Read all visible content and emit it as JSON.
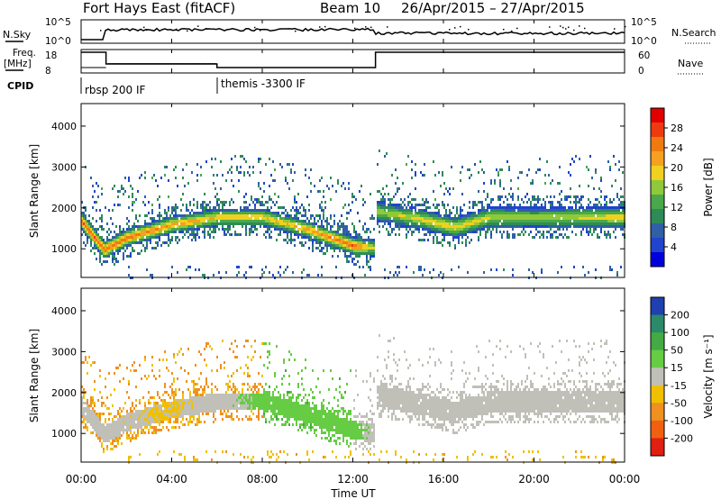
{
  "header": {
    "station": "Fort Hays East (fitACF)",
    "beam": "Beam 10",
    "dates": "26/Apr/2015 – 27/Apr/2015"
  },
  "top_panels": {
    "nsky_label": "N.Sky",
    "nsky_ticks": [
      "10^5",
      "10^0"
    ],
    "nsearch_label": "N.Search",
    "nsearch_ticks": [
      "10^5",
      "10^0"
    ],
    "freq_label": "Freq.",
    "freq_unit": "[MHz]",
    "freq_ticks": [
      "18",
      "8"
    ],
    "nave_label": "Nave",
    "nave_ticks": [
      "60",
      "0"
    ],
    "cpid_label": "CPID",
    "cpid_segments": [
      {
        "label": "rbsp 200 IF",
        "start_hour": 0
      },
      {
        "label": "themis -3300 IF",
        "start_hour": 6
      }
    ]
  },
  "colorbars": {
    "power": {
      "label": "Power [dB]",
      "ticks": [
        "28",
        "24",
        "20",
        "16",
        "12",
        "8",
        "4"
      ],
      "colors": [
        "#0000dd",
        "#2044cc",
        "#2f5fa5",
        "#2e8b57",
        "#4aa84a",
        "#8fc93a",
        "#f0d020",
        "#f5a020",
        "#f07a10",
        "#ee3a10",
        "#e00000"
      ]
    },
    "velocity": {
      "label": "Velocity [m s⁻¹]",
      "ticks": [
        "200",
        "100",
        "50",
        "15",
        "-15",
        "-50",
        "-100",
        "-200"
      ],
      "colors": [
        "#2040b0",
        "#2b8a6a",
        "#44aa44",
        "#66cc44",
        "#c0c0b8",
        "#f0c000",
        "#f09020",
        "#f06010",
        "#e02010"
      ]
    }
  },
  "chart_data": [
    {
      "type": "heatmap",
      "title": "Fort Hays East (fitACF) Beam 10 26/Apr/2015 – 27/Apr/2015",
      "xlabel": "Time UT",
      "ylabel": "Slant Range [km]",
      "x_ticks": [
        "00:00",
        "04:00",
        "08:00",
        "12:00",
        "16:00",
        "20:00",
        "00:00"
      ],
      "xlim": [
        0,
        24
      ],
      "y_ticks": [
        "1000",
        "2000",
        "3000",
        "4000"
      ],
      "ylim": [
        300,
        4550
      ],
      "colorbar": "Power [dB]",
      "clim": [
        0,
        30
      ],
      "main_band_km": [
        [
          0.0,
          1700
        ],
        [
          1.0,
          1000
        ],
        [
          2.0,
          1300
        ],
        [
          4.0,
          1620
        ],
        [
          6.0,
          1800
        ],
        [
          8.0,
          1800
        ],
        [
          10.0,
          1500
        ],
        [
          12.0,
          1100
        ],
        [
          12.9,
          1050
        ],
        [
          13.0,
          1950
        ],
        [
          15.0,
          1750
        ],
        [
          16.5,
          1550
        ],
        [
          18.0,
          1800
        ],
        [
          20.0,
          1800
        ],
        [
          24.0,
          1800
        ]
      ],
      "peak_power_db": [
        [
          0.0,
          26
        ],
        [
          1.0,
          26
        ],
        [
          3.0,
          24
        ],
        [
          6.0,
          20
        ],
        [
          9.0,
          20
        ],
        [
          12.0,
          26
        ],
        [
          13.0,
          16
        ],
        [
          16.0,
          20
        ],
        [
          20.0,
          16
        ],
        [
          24.0,
          20
        ]
      ]
    },
    {
      "type": "heatmap",
      "xlabel": "Time UT",
      "ylabel": "Slant Range [km]",
      "x_ticks": [
        "00:00",
        "04:00",
        "08:00",
        "12:00",
        "16:00",
        "20:00",
        "00:00"
      ],
      "xlim": [
        0,
        24
      ],
      "y_ticks": [
        "1000",
        "2000",
        "3000",
        "4000"
      ],
      "ylim": [
        300,
        4550
      ],
      "colorbar": "Velocity [m s⁻¹]",
      "clim": [
        -200,
        200
      ],
      "band_velocity_ms": [
        [
          0.0,
          0
        ],
        [
          4.0,
          -30
        ],
        [
          8.0,
          40
        ],
        [
          10.0,
          60
        ],
        [
          12.0,
          50
        ],
        [
          13.0,
          0
        ],
        [
          24.0,
          0
        ]
      ]
    }
  ]
}
